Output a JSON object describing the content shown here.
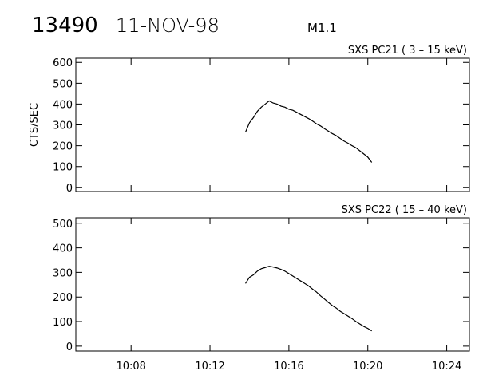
{
  "header": {
    "id": "13490",
    "date": "11-NOV-98",
    "class": "M1.1"
  },
  "chart_data": [
    {
      "type": "line",
      "title": "SXS PC21  (  3 – 15 keV)",
      "ylabel": "CTS/SEC",
      "x": [
        13.8,
        14.0,
        14.2,
        14.4,
        14.6,
        14.8,
        15.0,
        15.2,
        15.4,
        15.6,
        15.8,
        16.0,
        16.2,
        16.4,
        16.6,
        16.8,
        17.0,
        17.2,
        17.4,
        17.6,
        17.8,
        18.0,
        18.2,
        18.4,
        18.6,
        18.8,
        19.0,
        19.2,
        19.4,
        19.6,
        19.8,
        20.0,
        20.2
      ],
      "series": [
        {
          "color": "#000000",
          "values": [
            265,
            310,
            335,
            365,
            385,
            400,
            415,
            405,
            400,
            390,
            385,
            375,
            370,
            360,
            350,
            340,
            330,
            318,
            305,
            295,
            282,
            270,
            258,
            248,
            235,
            222,
            212,
            200,
            190,
            175,
            160,
            145,
            120
          ]
        }
      ],
      "xlim": [
        5.2,
        25.15
      ],
      "xticks": [
        8,
        12,
        16,
        20,
        24
      ],
      "ylim": [
        -20,
        620
      ],
      "yticks": [
        0,
        100,
        200,
        300,
        400,
        500,
        600
      ]
    },
    {
      "type": "line",
      "title": "SXS PC22  ( 15 – 40 keV)",
      "x": [
        13.8,
        14.0,
        14.2,
        14.4,
        14.6,
        14.8,
        15.0,
        15.2,
        15.4,
        15.6,
        15.8,
        16.0,
        16.2,
        16.4,
        16.6,
        16.8,
        17.0,
        17.2,
        17.4,
        17.6,
        17.8,
        18.0,
        18.2,
        18.4,
        18.6,
        18.8,
        19.0,
        19.2,
        19.4,
        19.6,
        19.8,
        20.0,
        20.2
      ],
      "series": [
        {
          "color": "#000000",
          "values": [
            255,
            280,
            290,
            305,
            315,
            320,
            325,
            322,
            318,
            312,
            305,
            295,
            285,
            275,
            265,
            255,
            245,
            232,
            220,
            205,
            192,
            178,
            165,
            155,
            142,
            132,
            122,
            112,
            100,
            90,
            80,
            72,
            62
          ]
        }
      ],
      "xlim": [
        5.2,
        25.15
      ],
      "xticks": [
        {
          "value": 8,
          "label": "10:08"
        },
        {
          "value": 12,
          "label": "10:12"
        },
        {
          "value": 16,
          "label": "10:16"
        },
        {
          "value": 20,
          "label": "10:20"
        },
        {
          "value": 24,
          "label": "10:24"
        }
      ],
      "ylim": [
        -20,
        522
      ],
      "yticks": [
        0,
        100,
        200,
        300,
        400,
        500
      ]
    }
  ]
}
